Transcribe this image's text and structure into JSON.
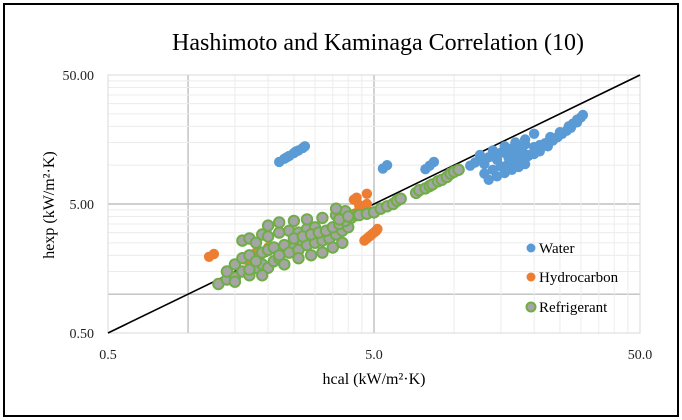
{
  "chart_data": {
    "type": "scatter",
    "title": "Hashimoto and Kaminaga  Correlation (10)",
    "xlabel": "hcal (kW/m²·K)",
    "ylabel": "hexp (kW/m²·K)",
    "xscale": "log",
    "yscale": "log",
    "xlim": [
      0.5,
      50
    ],
    "ylim": [
      0.5,
      50
    ],
    "x_ticks": [
      "0.5",
      "5.0",
      "50.0"
    ],
    "y_ticks": [
      "0.50",
      "5.00",
      "50.00"
    ],
    "grid": true,
    "legend_position": "bottom-right",
    "reference_line": {
      "name": "y = x",
      "from": [
        0.5,
        0.5
      ],
      "to": [
        50,
        50
      ],
      "color": "#000000"
    },
    "series": [
      {
        "name": "Water",
        "color": "#5b9bd5",
        "outline": "#5b9bd5",
        "points": [
          [
            2.2,
            10.6
          ],
          [
            2.3,
            11.2
          ],
          [
            2.4,
            11.8
          ],
          [
            2.5,
            12.4
          ],
          [
            2.6,
            13.0
          ],
          [
            2.7,
            13.6
          ],
          [
            2.75,
            14.0
          ],
          [
            2.35,
            11.5
          ],
          [
            2.55,
            12.8
          ],
          [
            5.4,
            9.4
          ],
          [
            5.6,
            10.0
          ],
          [
            7.8,
            9.3
          ],
          [
            8.1,
            9.9
          ],
          [
            8.4,
            10.6
          ],
          [
            11.5,
            9.9
          ],
          [
            12.0,
            10.5
          ],
          [
            12.5,
            11.0
          ],
          [
            13.0,
            10.2
          ],
          [
            13.5,
            11.5
          ],
          [
            14.0,
            12.0
          ],
          [
            14.5,
            11.0
          ],
          [
            15.0,
            12.5
          ],
          [
            15.5,
            13.0
          ],
          [
            16.0,
            11.5
          ],
          [
            16.5,
            13.5
          ],
          [
            17.0,
            12.5
          ],
          [
            17.5,
            14.0
          ],
          [
            18.0,
            13.0
          ],
          [
            18.5,
            14.5
          ],
          [
            19.0,
            12.0
          ],
          [
            13.0,
            8.6
          ],
          [
            14.0,
            9.2
          ],
          [
            15.0,
            9.8
          ],
          [
            16.0,
            10.3
          ],
          [
            17.0,
            10.8
          ],
          [
            18.0,
            11.3
          ],
          [
            19.0,
            11.8
          ],
          [
            20.0,
            12.2
          ],
          [
            21.0,
            12.8
          ],
          [
            13.5,
            7.7
          ],
          [
            14.5,
            8.2
          ],
          [
            15.5,
            8.7
          ],
          [
            16.5,
            9.2
          ],
          [
            17.5,
            9.7
          ],
          [
            18.5,
            10.2
          ],
          [
            12.5,
            12.0
          ],
          [
            14.0,
            13.0
          ],
          [
            15.5,
            14.0
          ],
          [
            17.0,
            15.0
          ],
          [
            18.5,
            15.8
          ],
          [
            20.0,
            13.8
          ],
          [
            21.0,
            14.3
          ],
          [
            22.0,
            14.8
          ],
          [
            20.0,
            17.5
          ],
          [
            22.5,
            14.0
          ],
          [
            23.5,
            15.5
          ],
          [
            24.5,
            16.5
          ],
          [
            25.5,
            17.5
          ],
          [
            26.5,
            18.5
          ],
          [
            27.5,
            19.5
          ],
          [
            28.0,
            21.0
          ],
          [
            29.0,
            22.5
          ],
          [
            30.0,
            23.5
          ],
          [
            30.5,
            24.5
          ],
          [
            23.0,
            16.5
          ],
          [
            25.0,
            18.0
          ],
          [
            27.0,
            20.0
          ],
          [
            29.0,
            21.5
          ]
        ]
      },
      {
        "name": "Hydrocarbon",
        "color": "#ed7d31",
        "outline": "#ed7d31",
        "points": [
          [
            1.2,
            1.95
          ],
          [
            1.25,
            2.05
          ],
          [
            1.65,
            1.85
          ],
          [
            1.8,
            2.1
          ],
          [
            2.0,
            2.3
          ],
          [
            2.2,
            2.1
          ],
          [
            2.4,
            2.4
          ],
          [
            2.6,
            2.6
          ],
          [
            3.0,
            2.8
          ],
          [
            3.2,
            3.0
          ],
          [
            3.4,
            3.2
          ],
          [
            3.6,
            3.4
          ],
          [
            3.8,
            3.6
          ],
          [
            4.0,
            3.9
          ],
          [
            4.2,
            4.2
          ],
          [
            4.4,
            4.5
          ],
          [
            4.2,
            5.4
          ],
          [
            4.3,
            5.6
          ],
          [
            4.4,
            4.9
          ],
          [
            4.7,
            6.0
          ],
          [
            4.7,
            5.0
          ],
          [
            4.6,
            2.6
          ],
          [
            4.7,
            2.7
          ],
          [
            4.8,
            2.8
          ],
          [
            4.9,
            2.9
          ],
          [
            5.0,
            3.0
          ],
          [
            5.1,
            3.1
          ],
          [
            5.15,
            3.2
          ]
        ]
      },
      {
        "name": "Refrigerant",
        "color": "#a5a5a5",
        "outline": "#70ad47",
        "points": [
          [
            1.3,
            1.2
          ],
          [
            1.4,
            1.3
          ],
          [
            1.5,
            1.35
          ],
          [
            1.6,
            1.5
          ],
          [
            1.7,
            1.4
          ],
          [
            1.8,
            1.6
          ],
          [
            1.9,
            1.7
          ],
          [
            2.0,
            1.6
          ],
          [
            2.1,
            1.8
          ],
          [
            2.2,
            1.9
          ],
          [
            1.5,
            1.7
          ],
          [
            1.6,
            1.9
          ],
          [
            1.7,
            2.0
          ],
          [
            1.8,
            1.8
          ],
          [
            1.9,
            2.1
          ],
          [
            2.0,
            2.2
          ],
          [
            2.1,
            2.3
          ],
          [
            2.3,
            2.4
          ],
          [
            2.5,
            2.3
          ],
          [
            2.7,
            2.5
          ],
          [
            1.6,
            2.6
          ],
          [
            1.7,
            2.7
          ],
          [
            1.8,
            2.5
          ],
          [
            1.9,
            2.9
          ],
          [
            2.0,
            2.8
          ],
          [
            2.2,
            3.0
          ],
          [
            2.4,
            3.1
          ],
          [
            2.6,
            3.0
          ],
          [
            2.8,
            3.2
          ],
          [
            3.0,
            3.3
          ],
          [
            2.2,
            2.0
          ],
          [
            2.4,
            2.1
          ],
          [
            2.6,
            2.2
          ],
          [
            2.8,
            2.4
          ],
          [
            3.0,
            2.5
          ],
          [
            3.2,
            2.6
          ],
          [
            3.4,
            2.7
          ],
          [
            3.6,
            2.9
          ],
          [
            3.8,
            3.1
          ],
          [
            4.0,
            3.3
          ],
          [
            2.5,
            2.7
          ],
          [
            2.7,
            2.8
          ],
          [
            2.9,
            2.9
          ],
          [
            3.1,
            3.0
          ],
          [
            3.3,
            3.1
          ],
          [
            3.5,
            3.3
          ],
          [
            3.7,
            3.5
          ],
          [
            3.9,
            3.7
          ],
          [
            4.1,
            3.9
          ],
          [
            4.3,
            4.1
          ],
          [
            2.0,
            3.4
          ],
          [
            2.2,
            3.6
          ],
          [
            2.5,
            3.7
          ],
          [
            2.8,
            3.8
          ],
          [
            3.2,
            3.9
          ],
          [
            3.6,
            4.1
          ],
          [
            3.9,
            4.4
          ],
          [
            1.4,
            1.5
          ],
          [
            1.5,
            1.25
          ],
          [
            1.7,
            1.55
          ],
          [
            1.9,
            1.4
          ],
          [
            2.3,
            1.7
          ],
          [
            2.6,
            1.9
          ],
          [
            2.9,
            2.0
          ],
          [
            3.2,
            2.1
          ],
          [
            3.5,
            2.3
          ],
          [
            3.8,
            2.5
          ],
          [
            3.6,
            4.6
          ],
          [
            3.7,
            3.8
          ],
          [
            4.0,
            4.0
          ],
          [
            4.4,
            4.1
          ],
          [
            4.7,
            4.2
          ],
          [
            5.0,
            4.3
          ],
          [
            5.3,
            4.6
          ],
          [
            5.6,
            4.8
          ],
          [
            5.9,
            5.0
          ],
          [
            6.1,
            5.3
          ],
          [
            6.3,
            5.5
          ],
          [
            7.2,
            6.1
          ],
          [
            7.4,
            6.4
          ],
          [
            7.8,
            6.6
          ],
          [
            8.1,
            6.9
          ],
          [
            8.3,
            7.1
          ],
          [
            8.7,
            7.5
          ],
          [
            9.0,
            7.7
          ],
          [
            9.4,
            8.1
          ],
          [
            9.7,
            8.6
          ],
          [
            10.0,
            8.9
          ],
          [
            10.4,
            9.2
          ]
        ]
      }
    ]
  }
}
